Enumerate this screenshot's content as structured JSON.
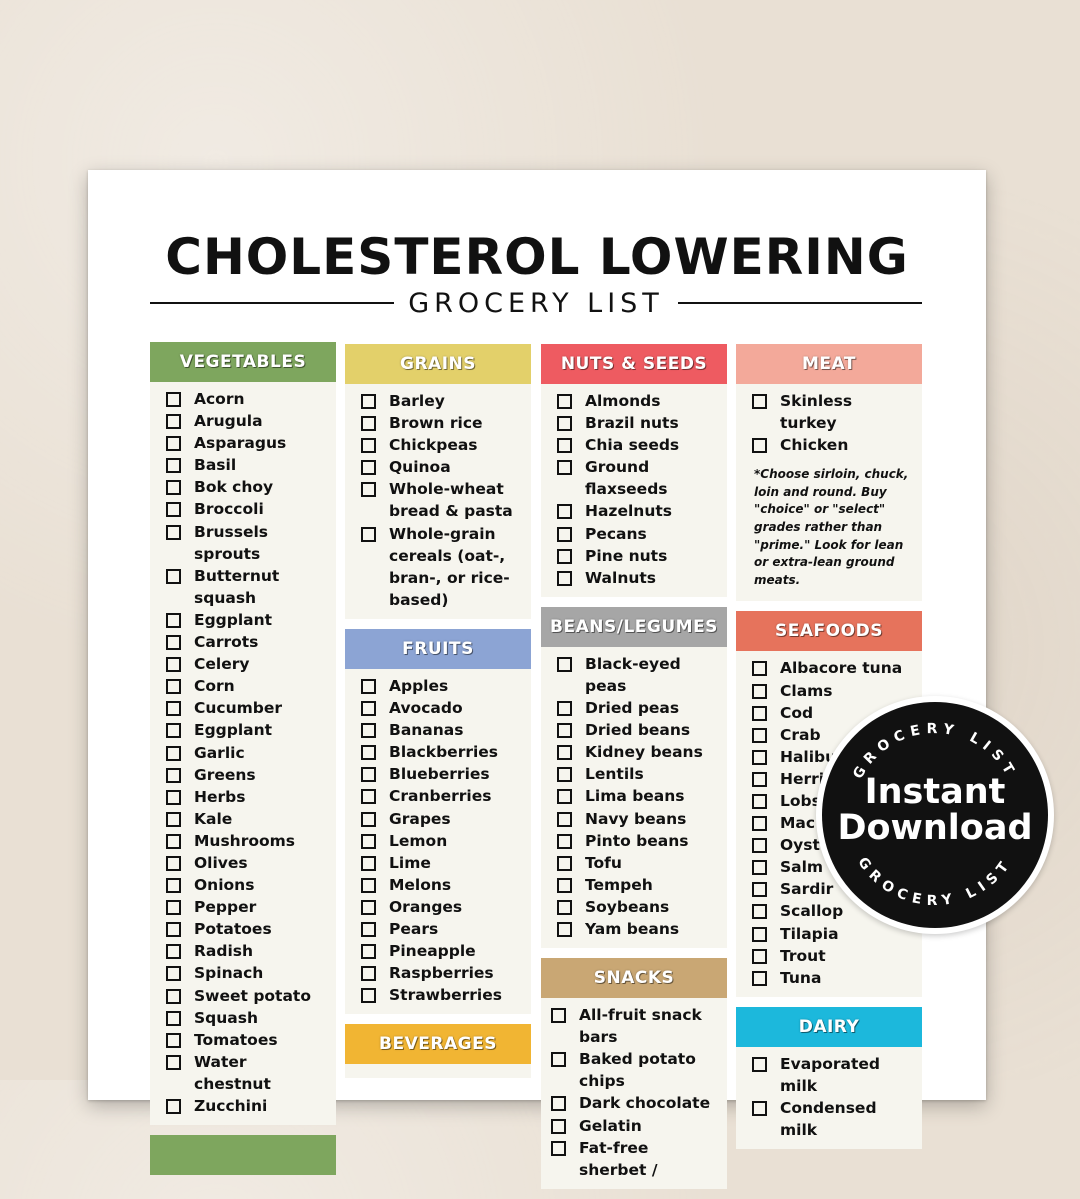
{
  "title": "CHOLESTEROL LOWERING",
  "subtitle": "GROCERY LIST",
  "sections": {
    "vegetables": {
      "label": "VEGETABLES",
      "color": "#7ea65e",
      "items": [
        "Acorn",
        "Arugula",
        "Asparagus",
        "Basil",
        "Bok choy",
        "Broccoli",
        "Brussels sprouts",
        "Butternut squash",
        "Eggplant",
        "Carrots",
        "Celery",
        "Corn",
        "Cucumber",
        "Eggplant",
        "Garlic",
        "Greens",
        "Herbs",
        "Kale",
        "Mushrooms",
        "Olives",
        "Onions",
        "Pepper",
        "Potatoes",
        "Radish",
        "Spinach",
        "Sweet potato",
        "Squash",
        "Tomatoes",
        "Water chestnut",
        "Zucchini"
      ]
    },
    "grains": {
      "label": "GRAINS",
      "color": "#e3d06a",
      "items": [
        "Barley",
        "Brown rice",
        "Chickpeas",
        "Quinoa",
        "Whole-wheat bread & pasta",
        "Whole-grain cereals (oat-, bran-, or rice-based)"
      ]
    },
    "fruits": {
      "label": "FRUITS",
      "color": "#8ca4d4",
      "items": [
        "Apples",
        "Avocado",
        "Bananas",
        "Blackberries",
        "Blueberries",
        "Cranberries",
        "Grapes",
        "Lemon",
        "Lime",
        "Melons",
        "Oranges",
        "Pears",
        "Pineapple",
        "Raspberries",
        "Strawberries"
      ]
    },
    "beverages": {
      "label": "BEVERAGES",
      "color": "#f1b533"
    },
    "nuts_seeds": {
      "label": "NUTS & SEEDS",
      "color": "#ee5b61",
      "items": [
        "Almonds",
        "Brazil nuts",
        "Chia seeds",
        "Ground flaxseeds",
        "Hazelnuts",
        "Pecans",
        "Pine nuts",
        "Walnuts"
      ]
    },
    "beans_legumes": {
      "label": "BEANS/LEGUMES",
      "color": "#a6a6a6",
      "items": [
        "Black-eyed peas",
        "Dried peas",
        "Dried beans",
        "Kidney beans",
        "Lentils",
        "Lima beans",
        "Navy beans",
        "Pinto beans",
        "Tofu",
        "Tempeh",
        "Soybeans",
        "Yam beans"
      ]
    },
    "snacks": {
      "label": "SNACKS",
      "color": "#c9a774",
      "items": [
        "All-fruit snack bars",
        "Baked potato chips",
        "Dark chocolate",
        "Gelatin",
        "Fat-free sherbet /"
      ]
    },
    "meat": {
      "label": "MEAT",
      "color": "#f3a99a",
      "items": [
        "Skinless turkey",
        "Chicken"
      ],
      "note": "*Choose sirloin, chuck, loin and round. Buy \"choice\" or \"select\" grades rather than \"prime.\" Look for lean or extra-lean ground meats."
    },
    "seafoods": {
      "label": "SEAFOODS",
      "color": "#e6735c",
      "items": [
        "Albacore tuna",
        "Clams",
        "Cod",
        "Crab",
        "Halibut",
        "Herrir",
        "Lobs",
        "Mac",
        "Oyst",
        "Salm",
        "Sardir",
        "Scallop",
        "Tilapia",
        "Trout",
        "Tuna"
      ]
    },
    "dairy": {
      "label": "DAIRY",
      "color": "#1cb8dc",
      "items": [
        "Evaporated milk",
        "Condensed milk"
      ]
    }
  },
  "badge": {
    "line1": "Instant",
    "line2": "Download",
    "ring_text": "GROCERY LIST"
  }
}
